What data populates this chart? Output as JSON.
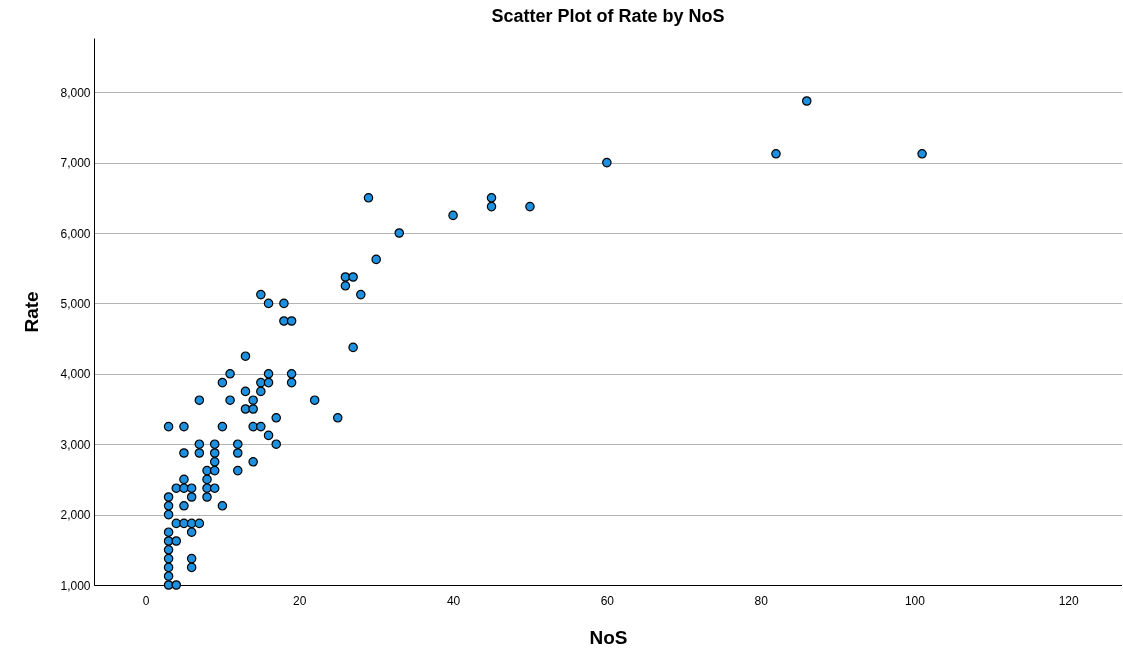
{
  "chart_data": {
    "type": "scatter",
    "title": "Scatter Plot of Rate by NoS",
    "xlabel": "NoS",
    "ylabel": "Rate",
    "xlim": [
      -6.7,
      127
    ],
    "xticks": [
      0,
      20,
      40,
      60,
      80,
      100,
      120
    ],
    "ylim": [
      1000,
      8770
    ],
    "yticks": [
      {
        "value": 1000,
        "label": "1,000"
      },
      {
        "value": 2000,
        "label": "2,000"
      },
      {
        "value": 3000,
        "label": "3,000"
      },
      {
        "value": 4000,
        "label": "4,000"
      },
      {
        "value": 5000,
        "label": "5,000"
      },
      {
        "value": 6000,
        "label": "6,000"
      },
      {
        "value": 7000,
        "label": "7,000"
      },
      {
        "value": 8000,
        "label": "8,000"
      }
    ],
    "grid": "y",
    "marker": "circle",
    "legend": false,
    "series": [
      {
        "color": "#1e90e0",
        "x": [
          3,
          3,
          3,
          3,
          3,
          3,
          3,
          3,
          3,
          3,
          3,
          4,
          4,
          4,
          4,
          5,
          5,
          5,
          5,
          5,
          5,
          6,
          6,
          6,
          6,
          6,
          6,
          7,
          7,
          7,
          7,
          8,
          8,
          8,
          8,
          9,
          9,
          9,
          9,
          9,
          10,
          10,
          10,
          11,
          11,
          12,
          12,
          12,
          13,
          13,
          13,
          14,
          14,
          14,
          14,
          15,
          15,
          15,
          15,
          16,
          16,
          16,
          16,
          17,
          17,
          18,
          18,
          19,
          19,
          19,
          22,
          25,
          26,
          26,
          27,
          27,
          28,
          29,
          30,
          33,
          40,
          45,
          45,
          50,
          60,
          82,
          86,
          101
        ],
        "values": [
          3250,
          2250,
          2125,
          2000,
          1750,
          1625,
          1500,
          1375,
          1250,
          1125,
          1000,
          2375,
          1875,
          1625,
          1000,
          3250,
          2875,
          2500,
          2375,
          2125,
          1875,
          2375,
          2250,
          1875,
          1750,
          1375,
          1250,
          3625,
          3000,
          2875,
          1875,
          2625,
          2500,
          2375,
          2250,
          3000,
          2875,
          2750,
          2625,
          2375,
          3875,
          3250,
          2125,
          4000,
          3625,
          3000,
          2875,
          2625,
          4250,
          3750,
          3500,
          3625,
          3500,
          3250,
          2750,
          5125,
          3875,
          3750,
          3250,
          5000,
          4000,
          3875,
          3125,
          3375,
          3000,
          5000,
          4750,
          4750,
          4000,
          3875,
          3625,
          3375,
          5375,
          5250,
          5375,
          4375,
          5125,
          6500,
          5625,
          6000,
          6250,
          6500,
          6375,
          6375,
          7000,
          7125,
          7875,
          7125
        ]
      }
    ]
  }
}
